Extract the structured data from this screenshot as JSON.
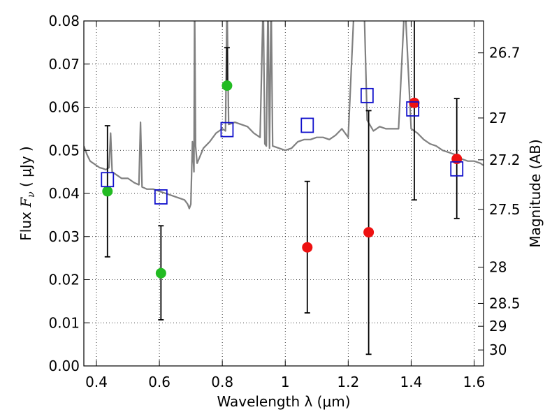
{
  "chart_data": {
    "type": "scatter",
    "xlabel": "Wavelength  λ (μm)",
    "ylabel": "Flux  Fν  ( μJy )",
    "ylabel_parts": {
      "prefix": "Flux ",
      "symbol": "F",
      "subscript": "ν",
      "suffix": " ( μJy )"
    },
    "y2label": "Magnitude (AB)",
    "xlim": [
      0.36,
      1.63
    ],
    "ylim": [
      0.0,
      0.08
    ],
    "grid": true,
    "x_ticks": [
      {
        "value": 0.4,
        "label": "0.4"
      },
      {
        "value": 0.6,
        "label": "0.6"
      },
      {
        "value": 0.8,
        "label": "0.8"
      },
      {
        "value": 1.0,
        "label": "1"
      },
      {
        "value": 1.2,
        "label": "1.2"
      },
      {
        "value": 1.4,
        "label": "1.4"
      },
      {
        "value": 1.6,
        "label": "1.6"
      }
    ],
    "y_ticks": [
      {
        "value": 0.0,
        "label": "0.00"
      },
      {
        "value": 0.01,
        "label": "0.01"
      },
      {
        "value": 0.02,
        "label": "0.02"
      },
      {
        "value": 0.03,
        "label": "0.03"
      },
      {
        "value": 0.04,
        "label": "0.04"
      },
      {
        "value": 0.05,
        "label": "0.05"
      },
      {
        "value": 0.06,
        "label": "0.06"
      },
      {
        "value": 0.07,
        "label": "0.07"
      },
      {
        "value": 0.08,
        "label": "0.08"
      }
    ],
    "magnitude_ticks": [
      {
        "flux": 0.0726,
        "label": "26.7"
      },
      {
        "flux": 0.0575,
        "label": "27"
      },
      {
        "flux": 0.0478,
        "label": "27.2"
      },
      {
        "flux": 0.0363,
        "label": "27.5"
      },
      {
        "flux": 0.0229,
        "label": "28"
      },
      {
        "flux": 0.0145,
        "label": "28.5"
      },
      {
        "flux": 0.0092,
        "label": "29"
      },
      {
        "flux": 0.0037,
        "label": "30"
      }
    ],
    "colors": {
      "model": "#808080",
      "green": "#22bb22",
      "red": "#ee1111",
      "square": "#1111cc",
      "errorbar": "#000000",
      "grid": "#000000"
    },
    "model_spectrum": {
      "name": "model SED",
      "x": [
        0.36,
        0.365,
        0.37,
        0.38,
        0.39,
        0.4,
        0.41,
        0.42,
        0.43,
        0.44,
        0.445,
        0.45,
        0.46,
        0.48,
        0.5,
        0.52,
        0.535,
        0.54,
        0.545,
        0.56,
        0.58,
        0.6,
        0.62,
        0.64,
        0.66,
        0.68,
        0.69,
        0.695,
        0.7,
        0.705,
        0.71,
        0.712,
        0.715,
        0.72,
        0.74,
        0.76,
        0.78,
        0.8,
        0.81,
        0.815,
        0.82,
        0.84,
        0.86,
        0.88,
        0.9,
        0.92,
        0.93,
        0.935,
        0.94,
        0.945,
        0.95,
        0.955,
        0.96,
        0.98,
        1.0,
        1.02,
        1.04,
        1.06,
        1.08,
        1.1,
        1.12,
        1.14,
        1.16,
        1.18,
        1.2,
        1.22,
        1.25,
        1.26,
        1.28,
        1.3,
        1.32,
        1.34,
        1.36,
        1.38,
        1.4,
        1.42,
        1.44,
        1.46,
        1.48,
        1.5,
        1.52,
        1.54,
        1.56,
        1.58,
        1.6,
        1.62,
        1.63
      ],
      "y": [
        0.051,
        0.05,
        0.049,
        0.0475,
        0.047,
        0.0465,
        0.046,
        0.0458,
        0.0455,
        0.046,
        0.054,
        0.045,
        0.0445,
        0.0435,
        0.0435,
        0.0425,
        0.042,
        0.0565,
        0.0415,
        0.041,
        0.041,
        0.0405,
        0.04,
        0.0395,
        0.039,
        0.0385,
        0.0375,
        0.0365,
        0.0375,
        0.052,
        0.045,
        0.085,
        0.051,
        0.047,
        0.0505,
        0.052,
        0.054,
        0.055,
        0.0545,
        0.085,
        0.056,
        0.0565,
        0.056,
        0.0555,
        0.054,
        0.053,
        0.085,
        0.0515,
        0.051,
        0.085,
        0.0505,
        0.085,
        0.051,
        0.0505,
        0.05,
        0.0505,
        0.052,
        0.0525,
        0.0525,
        0.053,
        0.053,
        0.0525,
        0.0535,
        0.055,
        0.053,
        0.085,
        0.085,
        0.057,
        0.0545,
        0.0555,
        0.055,
        0.055,
        0.055,
        0.085,
        0.055,
        0.054,
        0.0525,
        0.0515,
        0.051,
        0.05,
        0.0495,
        0.049,
        0.048,
        0.0475,
        0.0475,
        0.047,
        0.0465
      ]
    },
    "series": [
      {
        "name": "green points",
        "marker": "circle",
        "color_key": "green",
        "x": [
          0.435,
          0.605,
          0.815
        ],
        "y": [
          0.0405,
          0.0215,
          0.065
        ],
        "yerr_low": [
          0.0253,
          0.0107,
          null
        ],
        "yerr_high": [
          0.0557,
          0.0325,
          0.0738
        ]
      },
      {
        "name": "red points",
        "marker": "circle",
        "color_key": "red",
        "x": [
          1.07,
          1.265,
          1.41,
          1.545
        ],
        "y": [
          0.0275,
          0.031,
          0.061,
          0.048
        ],
        "yerr_low": [
          0.0123,
          0.0027,
          0.0385,
          0.0342
        ],
        "yerr_high": [
          0.0428,
          0.0592,
          0.0835,
          0.062
        ]
      },
      {
        "name": "model photometry",
        "marker": "open-square",
        "color_key": "square",
        "x": [
          0.435,
          0.605,
          0.815,
          1.07,
          1.26,
          1.405,
          1.545
        ],
        "y": [
          0.0432,
          0.0392,
          0.0548,
          0.0558,
          0.0627,
          0.0596,
          0.0457
        ]
      }
    ]
  }
}
